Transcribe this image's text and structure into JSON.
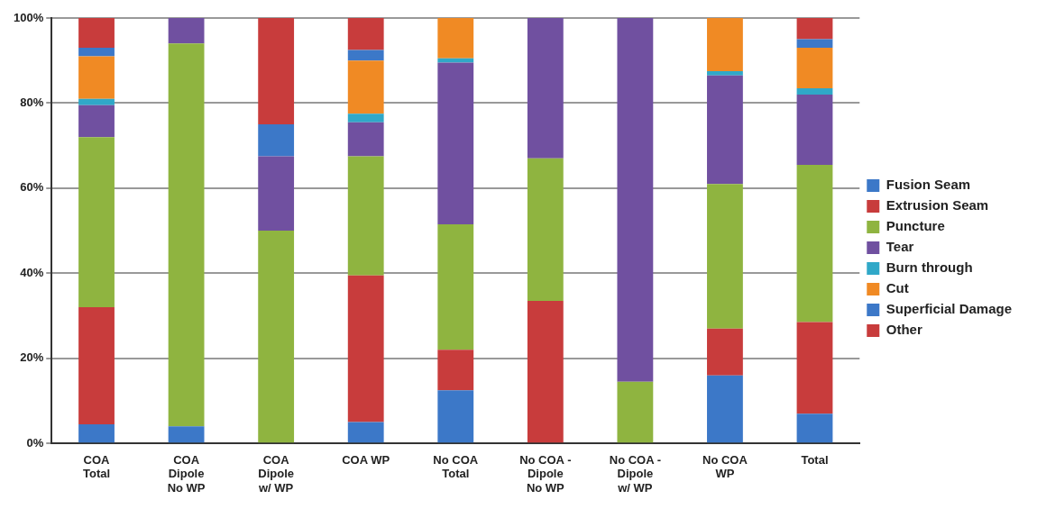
{
  "chart_data": {
    "type": "bar",
    "stacked": true,
    "legend": "right",
    "grid": "y",
    "categories": [
      "COA Total",
      "COA Dipole No WP",
      "COA Dipole w/ WP",
      "COA WP",
      "No COA Total",
      "No COA - Dipole No WP",
      "No COA - Dipole w/ WP",
      "No COA WP",
      "Total"
    ],
    "ylim": [
      0,
      100
    ],
    "yticks": [
      {
        "value": 0,
        "label": "0%"
      },
      {
        "value": 20,
        "label": "20%"
      },
      {
        "value": 40,
        "label": "40%"
      },
      {
        "value": 60,
        "label": "60%"
      },
      {
        "value": 80,
        "label": "80%"
      },
      {
        "value": 100,
        "label": "100%"
      }
    ],
    "series": [
      {
        "name": "Fusion Seam",
        "color": "#3c78c8",
        "values": [
          4.5,
          4,
          0,
          5,
          12.5,
          0,
          0,
          16,
          7
        ]
      },
      {
        "name": "Extrusion Seam",
        "color": "#c83c3c",
        "values": [
          27.5,
          0,
          0,
          34.5,
          9.5,
          33.5,
          0,
          11,
          21.5
        ]
      },
      {
        "name": "Puncture",
        "color": "#8fb440",
        "values": [
          40,
          90,
          50,
          28,
          29.5,
          33.5,
          14.5,
          34,
          37
        ]
      },
      {
        "name": "Tear",
        "color": "#7050a0",
        "values": [
          7.5,
          6,
          17.5,
          8,
          38,
          33,
          85.5,
          25.5,
          16.5
        ]
      },
      {
        "name": "Burn through",
        "color": "#30a8c8",
        "values": [
          1.5,
          0,
          0,
          2,
          1,
          0,
          0,
          1,
          1.5
        ]
      },
      {
        "name": "Cut",
        "color": "#f08a24",
        "values": [
          10,
          0,
          0,
          12.5,
          9.5,
          0,
          0,
          12.5,
          9.5
        ]
      },
      {
        "name": "Superficial Damage",
        "color": "#3c78c8",
        "values": [
          2,
          0,
          7.5,
          2.5,
          0,
          0,
          0,
          0,
          2
        ]
      },
      {
        "name": "Other",
        "color": "#c83c3c",
        "values": [
          7,
          0,
          25,
          7.5,
          0,
          0,
          0,
          0,
          5
        ]
      }
    ]
  }
}
